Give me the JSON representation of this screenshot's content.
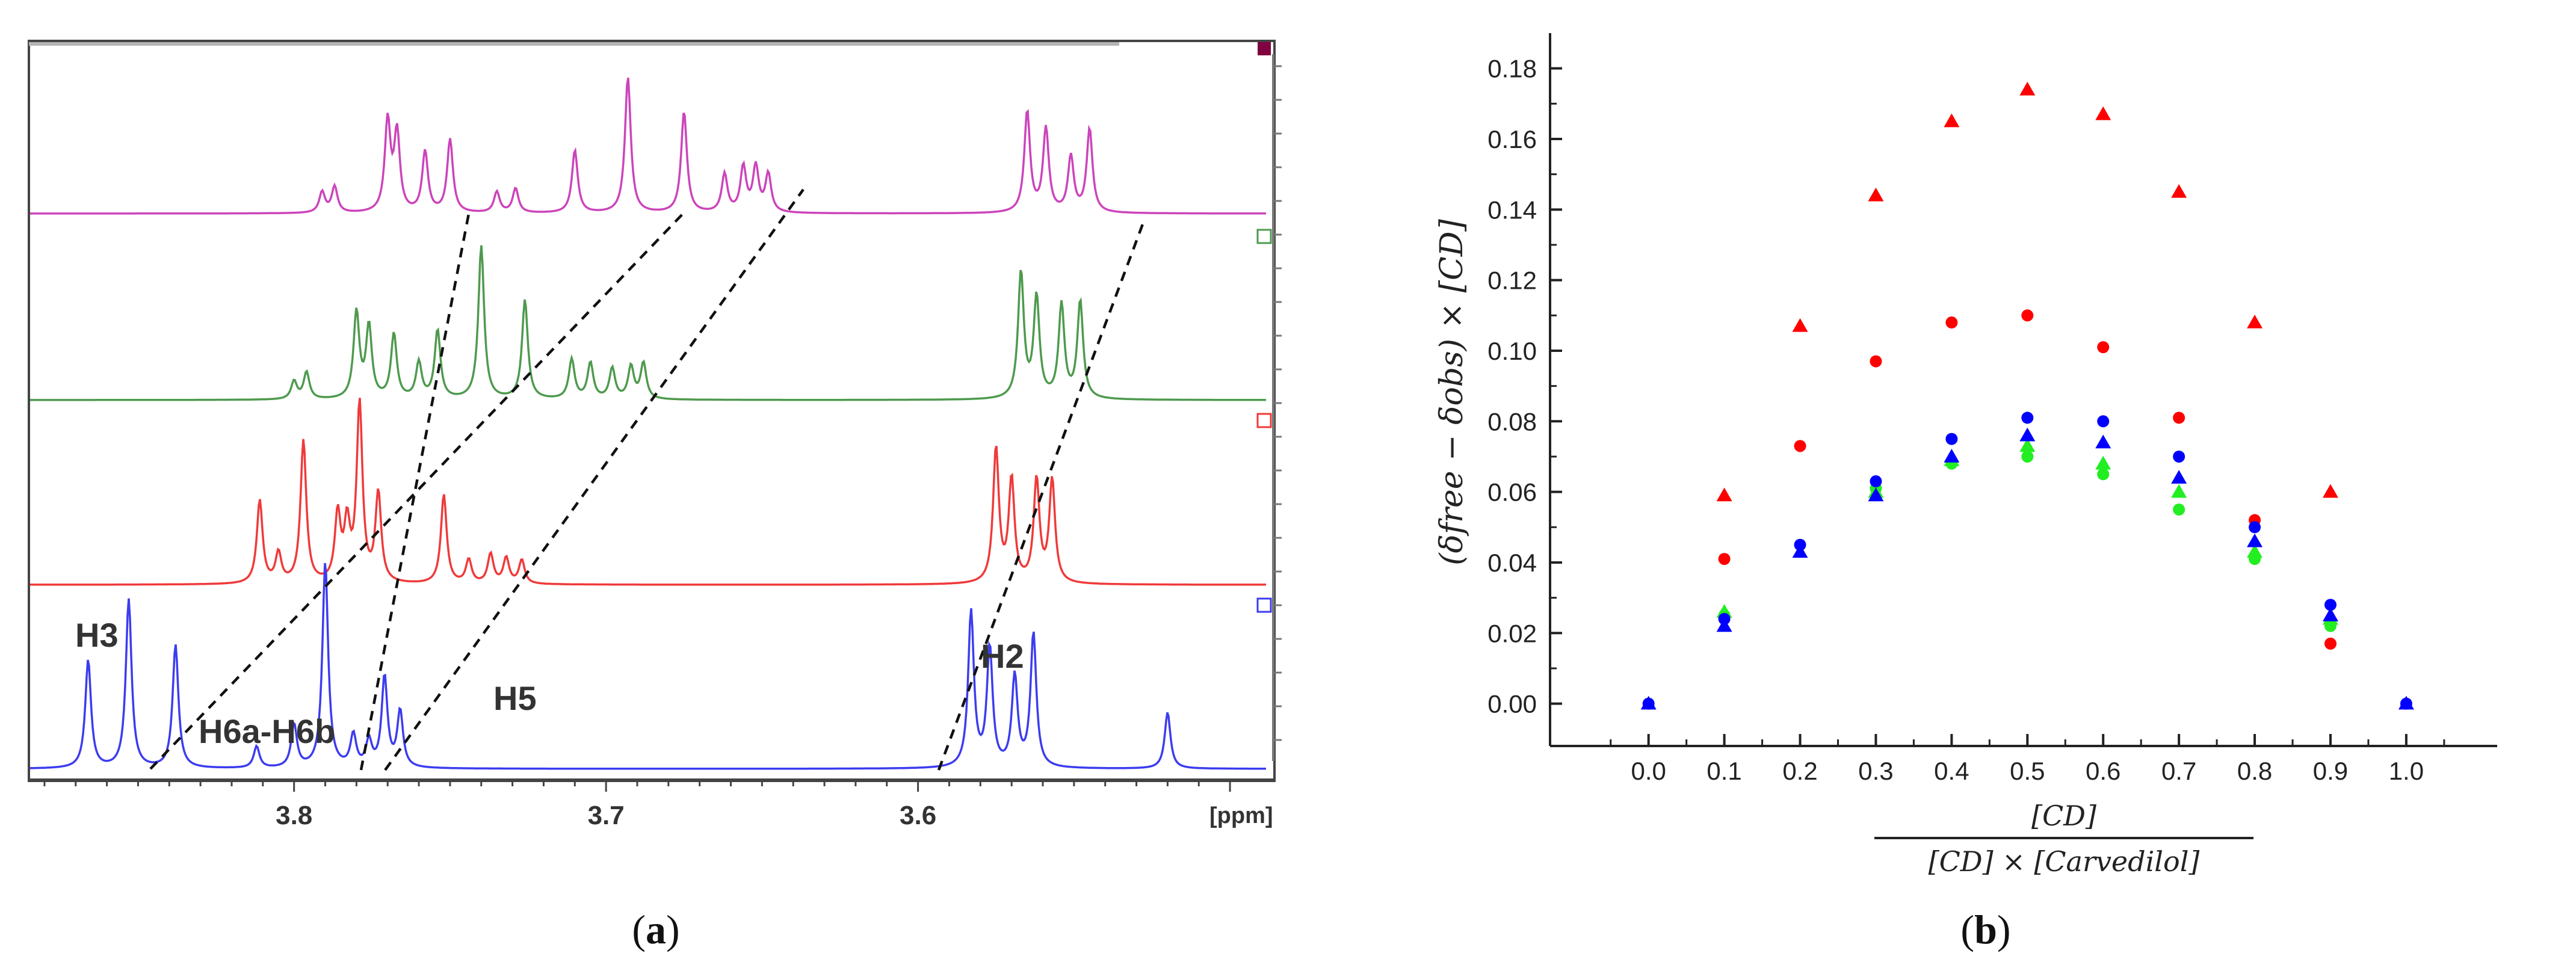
{
  "panels": {
    "a": {
      "caption_open": "(",
      "caption_letter": "a",
      "caption_close": ")"
    },
    "b": {
      "caption_open": "(",
      "caption_letter": "b",
      "caption_close": ")"
    }
  },
  "colors": {
    "trace_top": "#cc44bb",
    "trace_2": "#4e9a4e",
    "trace_3": "#f03a3a",
    "trace_bottom": "#3c3cf0",
    "frame": "#333333",
    "series_red": "#ff0000",
    "series_green": "#22ee22",
    "series_blue": "#0000ff"
  },
  "chart_data": [
    {
      "type": "line",
      "title": "",
      "xlabel": "[ppm]",
      "x_direction": "reversed",
      "xlim": [
        3.885,
        3.495
      ],
      "xticks": [
        3.8,
        3.7,
        3.6
      ],
      "xtick_labels": [
        "3.8",
        "3.7",
        "3.6"
      ],
      "series": [
        {
          "name": "spectrum-1",
          "color": "#cc44bb",
          "peaks": [
            [
              3.791,
              0.12
            ],
            [
              3.787,
              0.15
            ],
            [
              3.77,
              0.52
            ],
            [
              3.767,
              0.45
            ],
            [
              3.758,
              0.35
            ],
            [
              3.75,
              0.42
            ],
            [
              3.735,
              0.12
            ],
            [
              3.729,
              0.14
            ],
            [
              3.71,
              0.36
            ],
            [
              3.693,
              0.78
            ],
            [
              3.675,
              0.58
            ],
            [
              3.662,
              0.22
            ],
            [
              3.656,
              0.26
            ],
            [
              3.652,
              0.26
            ],
            [
              3.648,
              0.22
            ],
            [
              3.565,
              0.58
            ],
            [
              3.559,
              0.48
            ],
            [
              3.551,
              0.32
            ],
            [
              3.545,
              0.48
            ]
          ]
        },
        {
          "name": "spectrum-2",
          "color": "#4e9a4e",
          "peaks": [
            [
              3.8,
              0.1
            ],
            [
              3.796,
              0.15
            ],
            [
              3.78,
              0.48
            ],
            [
              3.776,
              0.4
            ],
            [
              3.768,
              0.36
            ],
            [
              3.76,
              0.2
            ],
            [
              3.754,
              0.38
            ],
            [
              3.74,
              0.85
            ],
            [
              3.726,
              0.55
            ],
            [
              3.711,
              0.22
            ],
            [
              3.705,
              0.2
            ],
            [
              3.698,
              0.17
            ],
            [
              3.692,
              0.18
            ],
            [
              3.688,
              0.2
            ],
            [
              3.567,
              0.7
            ],
            [
              3.562,
              0.56
            ],
            [
              3.554,
              0.52
            ],
            [
              3.548,
              0.54
            ]
          ]
        },
        {
          "name": "spectrum-3",
          "color": "#f03a3a",
          "peaks": [
            [
              3.811,
              0.42
            ],
            [
              3.805,
              0.15
            ],
            [
              3.797,
              0.72
            ],
            [
              3.786,
              0.34
            ],
            [
              3.783,
              0.28
            ],
            [
              3.779,
              0.9
            ],
            [
              3.773,
              0.45
            ],
            [
              3.752,
              0.45
            ],
            [
              3.744,
              0.12
            ],
            [
              3.737,
              0.15
            ],
            [
              3.732,
              0.13
            ],
            [
              3.727,
              0.12
            ],
            [
              3.575,
              0.68
            ],
            [
              3.57,
              0.52
            ],
            [
              3.562,
              0.52
            ],
            [
              3.557,
              0.52
            ]
          ]
        },
        {
          "name": "spectrum-4",
          "color": "#3c3cf0",
          "peaks": [
            [
              3.866,
              0.5
            ],
            [
              3.853,
              0.78
            ],
            [
              3.838,
              0.57
            ],
            [
              3.812,
              0.1
            ],
            [
              3.8,
              0.2
            ],
            [
              3.79,
              0.95
            ],
            [
              3.781,
              0.15
            ],
            [
              3.776,
              0.12
            ],
            [
              3.771,
              0.42
            ],
            [
              3.766,
              0.26
            ],
            [
              3.583,
              0.72
            ],
            [
              3.577,
              0.55
            ],
            [
              3.569,
              0.42
            ],
            [
              3.563,
              0.62
            ],
            [
              3.52,
              0.26
            ]
          ]
        }
      ],
      "annotations": [
        {
          "label": "H3"
        },
        {
          "label": "H6a-H6b"
        },
        {
          "label": "H5"
        },
        {
          "label": "H2"
        }
      ]
    },
    {
      "type": "scatter",
      "title": "",
      "xlabel": "[CD] / ([CD] × [Carvedilol])",
      "xlabel_numerator": "[CD]",
      "xlabel_denominator": "[CD] × [Carvedilol]",
      "ylabel": "(δfree − δobs) × [CD]",
      "xlim": [
        -0.13,
        1.12
      ],
      "ylim": [
        -0.012,
        0.19
      ],
      "xticks": [
        0.0,
        0.1,
        0.2,
        0.3,
        0.4,
        0.5,
        0.6,
        0.7,
        0.8,
        0.9,
        1.0
      ],
      "xtick_labels": [
        "0.0",
        "0.1",
        "0.2",
        "0.3",
        "0.4",
        "0.5",
        "0.6",
        "0.7",
        "0.8",
        "0.9",
        "1.0"
      ],
      "yticks": [
        0.0,
        0.02,
        0.04,
        0.06,
        0.08,
        0.1,
        0.12,
        0.14,
        0.16,
        0.18
      ],
      "ytick_labels": [
        "0.00",
        "0.02",
        "0.04",
        "0.06",
        "0.08",
        "0.10",
        "0.12",
        "0.14",
        "0.16",
        "0.18"
      ],
      "x": [
        0.0,
        0.1,
        0.2,
        0.3,
        0.4,
        0.5,
        0.6,
        0.7,
        0.8,
        0.9,
        1.0
      ],
      "series": [
        {
          "name": "red-triangle",
          "marker": "triangle",
          "color": "#ff0000",
          "points": [
            [
              0.1,
              0.059
            ],
            [
              0.2,
              0.107
            ],
            [
              0.3,
              0.144
            ],
            [
              0.4,
              0.165
            ],
            [
              0.5,
              0.174
            ],
            [
              0.6,
              0.167
            ],
            [
              0.7,
              0.145
            ],
            [
              0.8,
              0.108
            ],
            [
              0.9,
              0.06
            ]
          ]
        },
        {
          "name": "red-circle",
          "marker": "circle",
          "color": "#ff0000",
          "points": [
            [
              0.1,
              0.041
            ],
            [
              0.2,
              0.073
            ],
            [
              0.3,
              0.097
            ],
            [
              0.4,
              0.108
            ],
            [
              0.5,
              0.11
            ],
            [
              0.6,
              0.101
            ],
            [
              0.7,
              0.081
            ],
            [
              0.8,
              0.052
            ],
            [
              0.9,
              0.017
            ]
          ]
        },
        {
          "name": "green-triangle",
          "marker": "triangle",
          "color": "#22ee22",
          "points": [
            [
              0.1,
              0.026
            ],
            [
              0.3,
              0.06
            ],
            [
              0.4,
              0.069
            ],
            [
              0.5,
              0.073
            ],
            [
              0.6,
              0.068
            ],
            [
              0.7,
              0.06
            ],
            [
              0.8,
              0.043
            ],
            [
              0.9,
              0.024
            ]
          ]
        },
        {
          "name": "green-circle",
          "marker": "circle",
          "color": "#22ee22",
          "points": [
            [
              0.1,
              0.025
            ],
            [
              0.3,
              0.061
            ],
            [
              0.4,
              0.068
            ],
            [
              0.5,
              0.07
            ],
            [
              0.6,
              0.065
            ],
            [
              0.7,
              0.055
            ],
            [
              0.8,
              0.041
            ],
            [
              0.9,
              0.022
            ]
          ]
        },
        {
          "name": "blue-circle",
          "marker": "circle",
          "color": "#0000ff",
          "points": [
            [
              0.0,
              0.0
            ],
            [
              0.1,
              0.024
            ],
            [
              0.2,
              0.045
            ],
            [
              0.3,
              0.063
            ],
            [
              0.4,
              0.075
            ],
            [
              0.5,
              0.081
            ],
            [
              0.6,
              0.08
            ],
            [
              0.7,
              0.07
            ],
            [
              0.8,
              0.05
            ],
            [
              0.9,
              0.028
            ],
            [
              1.0,
              0.0
            ]
          ]
        },
        {
          "name": "blue-triangle",
          "marker": "triangle",
          "color": "#0000ff",
          "points": [
            [
              0.0,
              0.0
            ],
            [
              0.1,
              0.022
            ],
            [
              0.2,
              0.043
            ],
            [
              0.3,
              0.059
            ],
            [
              0.4,
              0.07
            ],
            [
              0.5,
              0.076
            ],
            [
              0.6,
              0.074
            ],
            [
              0.7,
              0.064
            ],
            [
              0.8,
              0.046
            ],
            [
              0.9,
              0.025
            ],
            [
              1.0,
              0.0
            ]
          ]
        }
      ]
    }
  ]
}
